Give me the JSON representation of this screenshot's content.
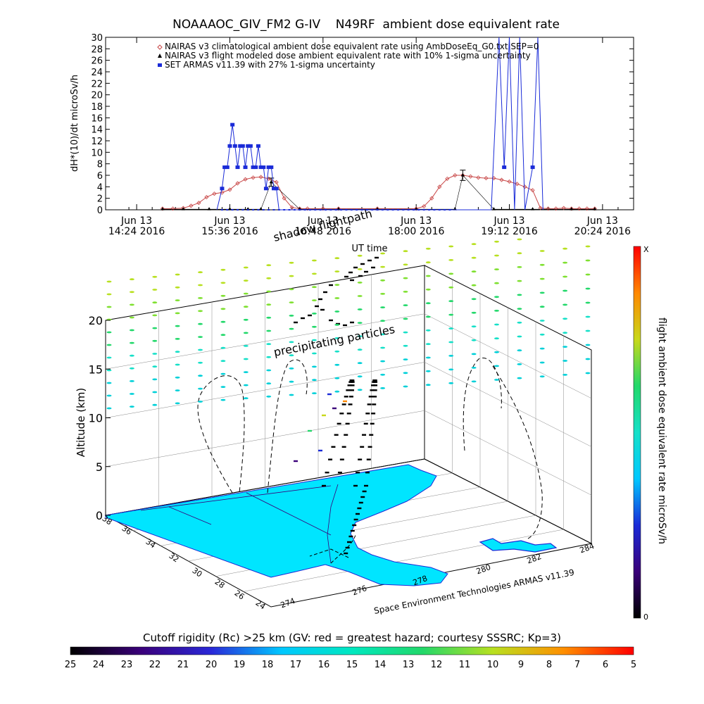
{
  "chart_data": [
    {
      "type": "line",
      "title": "NOAAAOC_GIV_FM2 G-IV    N49RF  ambient dose equivalent rate",
      "ylabel": "dH*(10)/dt microSv/h",
      "xlabel": "UT time",
      "ylim": [
        0,
        30
      ],
      "yticks": [
        "0",
        "2",
        "4",
        "6",
        "8",
        "10",
        "12",
        "14",
        "16",
        "18",
        "20",
        "22",
        "24",
        "26",
        "28",
        "30"
      ],
      "xticks": [
        {
          "date": "Jun 13",
          "time": "14:24 2016"
        },
        {
          "date": "Jun 13",
          "time": "15:36 2016"
        },
        {
          "date": "Jun 13",
          "time": "16:48 2016"
        },
        {
          "date": "Jun 13",
          "time": "18:00 2016"
        },
        {
          "date": "Jun 13",
          "time": "19:12 2016"
        },
        {
          "date": "Jun 13",
          "time": "20:24 2016"
        }
      ],
      "legend": [
        {
          "label": "NAIRAS v3 climatological ambient dose equivalent rate using AmbDoseEq_G0.txt SEP=0",
          "color": "#c84646",
          "marker": "diamond"
        },
        {
          "label": "NAIRAS v3 flight modeled dose ambient equivalent rate with 10% 1-sigma uncertainty",
          "color": "#000000",
          "marker": "triangle"
        },
        {
          "label": "SET ARMAS v11.39 with 27% 1-sigma uncertainty",
          "color": "#1a2bd8",
          "marker": "square"
        }
      ],
      "series": [
        {
          "name": "NAIRAS v3 climatological ambient dose equivalent rate using AmbDoseEq_G0.txt SEP=0",
          "x": [
            "14:44",
            "14:52",
            "15:00",
            "15:06",
            "15:12",
            "15:18",
            "15:24",
            "15:30",
            "15:36",
            "15:42",
            "15:48",
            "15:54",
            "16:00",
            "16:06",
            "16:12",
            "16:18",
            "16:24",
            "16:30",
            "16:36",
            "16:48",
            "17:00",
            "17:30",
            "18:00",
            "18:06",
            "18:12",
            "18:18",
            "18:24",
            "18:30",
            "18:36",
            "18:42",
            "18:48",
            "18:54",
            "19:00",
            "19:06",
            "19:12",
            "19:18",
            "19:24",
            "19:30",
            "19:36",
            "19:42",
            "19:48",
            "19:54",
            "20:00",
            "20:06",
            "20:12",
            "20:18"
          ],
          "values": [
            0.2,
            0.2,
            0.3,
            0.7,
            1.2,
            2.2,
            2.8,
            3.0,
            3.5,
            4.6,
            5.3,
            5.6,
            5.7,
            5.4,
            4.8,
            2.0,
            0.4,
            0.2,
            0.2,
            0.2,
            0.2,
            0.2,
            0.2,
            0.6,
            2.0,
            4.0,
            5.4,
            6.0,
            6.0,
            5.8,
            5.6,
            5.5,
            5.5,
            5.2,
            4.9,
            4.5,
            4.0,
            3.4,
            0.3,
            0.2,
            0.2,
            0.3,
            0.2,
            0.2,
            0.2,
            0.2
          ]
        },
        {
          "name": "NAIRAS v3 flight modeled dose ambient equivalent rate with 10% 1-sigma uncertainty",
          "x": [
            "14:44",
            "15:00",
            "15:20",
            "15:36",
            "15:50",
            "16:00",
            "16:08",
            "16:30",
            "17:00",
            "17:30",
            "18:00",
            "18:30",
            "18:36",
            "19:00",
            "19:30",
            "20:00",
            "20:18"
          ],
          "values": [
            0.1,
            0.1,
            0.1,
            0.1,
            0.1,
            0.1,
            4.8,
            0.1,
            0.1,
            0.1,
            0.1,
            0.1,
            6.0,
            0.1,
            0.1,
            0.1,
            0.1
          ]
        },
        {
          "name": "SET ARMAS v11.39 with 27% 1-sigma uncertainty",
          "x": [
            "15:26",
            "15:30",
            "15:32",
            "15:34",
            "15:36",
            "15:38",
            "15:40",
            "15:42",
            "15:44",
            "15:46",
            "15:48",
            "15:50",
            "15:52",
            "15:54",
            "15:56",
            "15:58",
            "16:00",
            "16:02",
            "16:04",
            "16:06",
            "16:08",
            "16:10",
            "16:12",
            "16:14",
            "16:16",
            "16:18",
            "16:20",
            "16:22",
            "18:30",
            "18:50",
            "18:58",
            "19:04",
            "19:08",
            "19:12",
            "19:16",
            "19:20",
            "19:24",
            "19:30",
            "19:34",
            "19:38"
          ],
          "values": [
            0,
            3.7,
            7.4,
            7.4,
            11.1,
            14.8,
            11.1,
            7.4,
            11.1,
            11.1,
            7.4,
            11.1,
            11.1,
            7.4,
            7.4,
            11.1,
            7.4,
            7.4,
            3.7,
            7.4,
            7.4,
            3.7,
            3.7,
            0,
            0,
            0,
            0,
            0,
            0,
            0,
            0,
            30,
            7.4,
            30,
            0,
            30,
            0,
            7.4,
            30,
            0
          ]
        }
      ]
    },
    {
      "type": "scatter",
      "subtype": "3d-flight-profile",
      "zlabel": "Altitude (km)",
      "zlim": [
        0,
        20
      ],
      "zticks": [
        "0",
        "5",
        "10",
        "15",
        "20"
      ],
      "lat_ticks": [
        "36",
        "34",
        "32",
        "30",
        "28",
        "26",
        "24"
      ],
      "lat_ticks_extra": [
        "38"
      ],
      "lon_ticks": [
        "274",
        "276",
        "278",
        "280",
        "282",
        "284"
      ],
      "annotations": [
        "shadow flightpath",
        "precipitating particles",
        "Space Environment Technologies ARMAS v11.39"
      ],
      "colorbar_right": {
        "label": "flight ambient dose equivalent rate microSv/h",
        "max_label": "X",
        "min_label": "0",
        "colors": [
          "#000000",
          "#3a007a",
          "#1a2bd8",
          "#00c8ff",
          "#16e0c8",
          "#22d86a",
          "#c8d81a",
          "#ff8800",
          "#ff0000"
        ]
      },
      "colorbar_bottom": {
        "label": "Cutoff rigidity (Rc) >25 km (GV: red = greatest hazard; courtesy SSSRC; Kp=3)",
        "ticks": [
          "25",
          "24",
          "23",
          "22",
          "21",
          "20",
          "19",
          "18",
          "17",
          "16",
          "15",
          "14",
          "13",
          "12",
          "11",
          "10",
          "9",
          "8",
          "7",
          "6",
          "5"
        ],
        "colors": [
          "#000000",
          "#3a007a",
          "#2a28d8",
          "#00c8ff",
          "#00e8c0",
          "#22d86a",
          "#b8e020",
          "#ff9000",
          "#ff0000"
        ]
      }
    }
  ]
}
